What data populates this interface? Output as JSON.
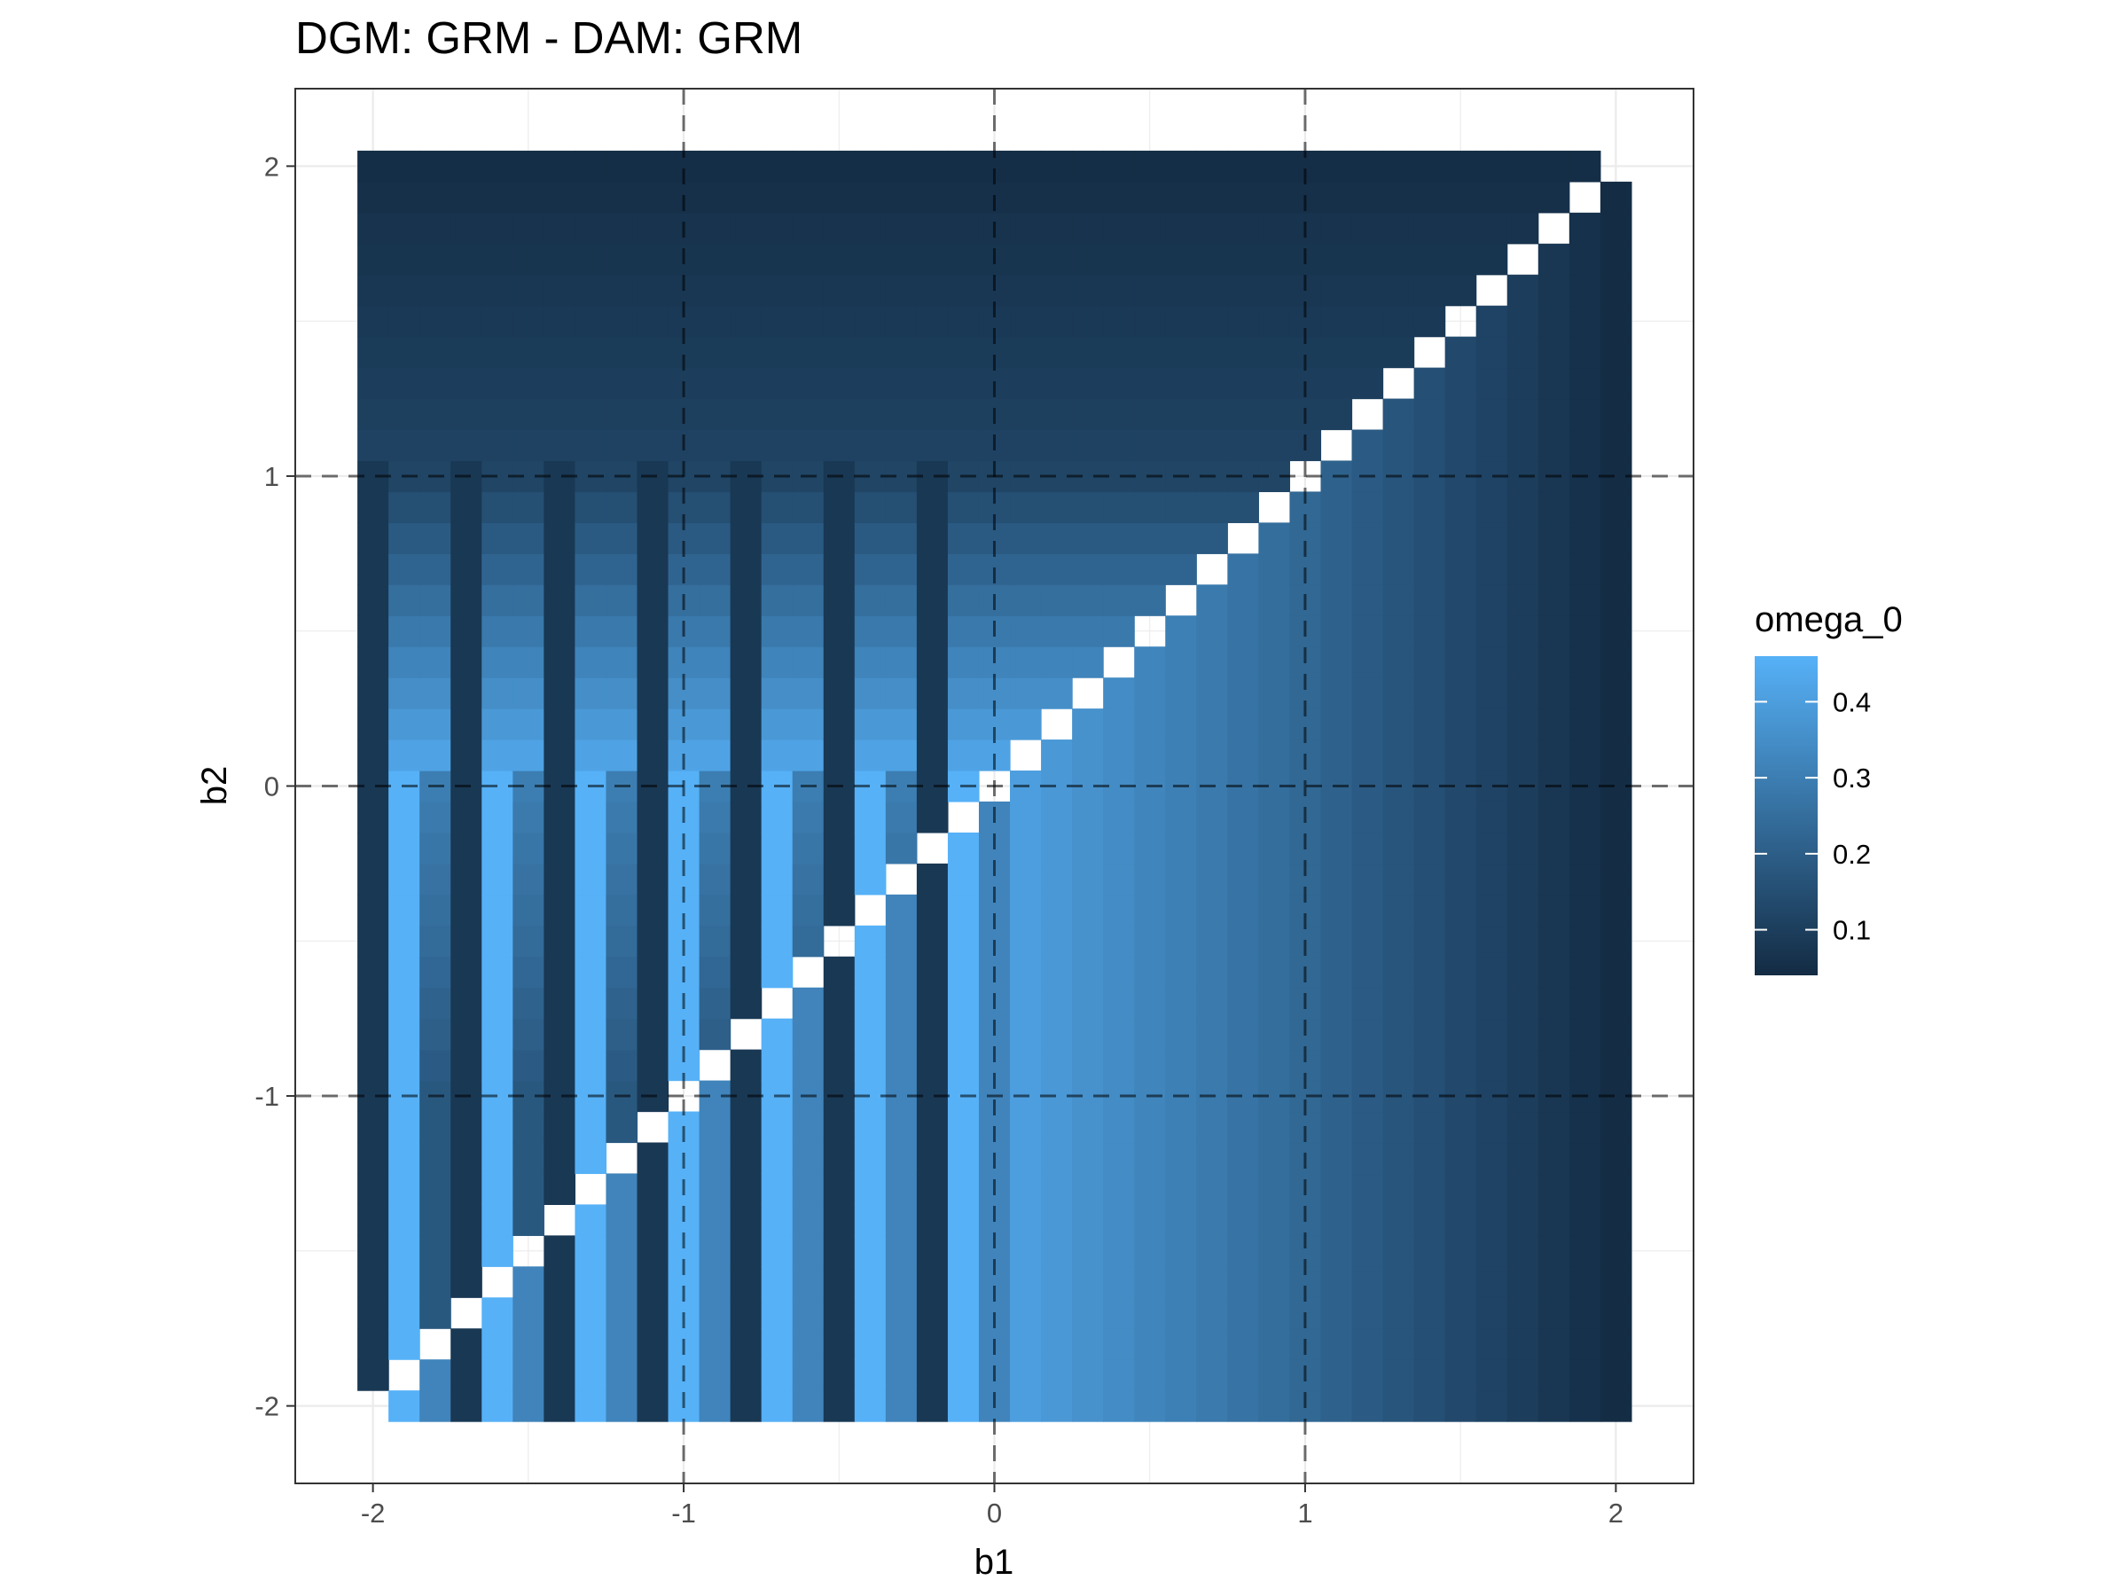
{
  "chart_data": {
    "type": "heatmap",
    "title": "DGM: GRM - DAM: GRM",
    "xlabel": "b1",
    "ylabel": "b2",
    "xlim": [
      -2.25,
      2.25
    ],
    "ylim": [
      -2.25,
      2.25
    ],
    "x_ticks": [
      -2,
      -1,
      0,
      1,
      2
    ],
    "y_ticks": [
      -2,
      -1,
      0,
      1,
      2
    ],
    "x_tick_labels": [
      "-2",
      "-1",
      "0",
      "1",
      "2"
    ],
    "y_tick_labels": [
      "-2",
      "-1",
      "0",
      "1",
      "2"
    ],
    "grid": true,
    "reference_lines": {
      "x": [
        -1,
        0,
        1
      ],
      "y": [
        -1,
        0,
        1
      ],
      "style": "dashed"
    },
    "cell_grid": {
      "b1_range": [
        -2.0,
        2.0
      ],
      "b1_step": 0.1,
      "b2_range": [
        -2.0,
        2.0
      ],
      "b2_step": 0.1
    },
    "diagonal": "b1 = b2 cells are empty",
    "legend": {
      "title": "omega_0",
      "position": "right",
      "ticks": [
        0.1,
        0.2,
        0.3,
        0.4
      ],
      "tick_labels": [
        "0.1",
        "0.2",
        "0.3",
        "0.4"
      ],
      "range": [
        0.04,
        0.46
      ],
      "color_low": "#132b43",
      "color_high": "#56b1f7"
    },
    "value_model": {
      "upper_region_b2_above_b1": "rows b2 > 1 uniform dark (0.05-0.12); for b2 between 0 and 1 value rises toward 0.45 as b2 decreases to 0, columns at b1 = -1.9, -1.6, -1.3, -1.0, -0.7, -0.4, -0.1 stay dark (~0.08)",
      "lower_left_b2_below_0": "bright columns (~0.46) alternating with dark columns (~0.08) and mid columns (~0.30) in a period-3 pattern of b1",
      "lower_right_b1_above_b2": "mostly column-wise gradient: bright near b1 = 0 (~0.45), fading to ~0.05 at b1 = 2, with alternating bright/dark stripes for b1 < 0"
    }
  }
}
